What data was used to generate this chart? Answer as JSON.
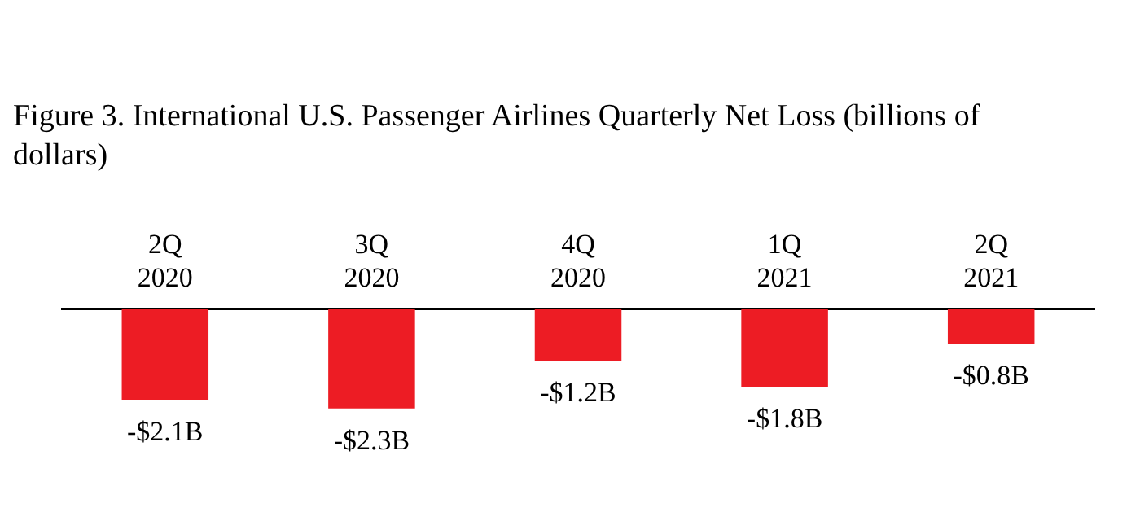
{
  "chart_data": {
    "type": "bar",
    "title": "Figure 3. International U.S. Passenger Airlines Quarterly Net Loss (billions of dollars)",
    "categories": [
      "2Q 2020",
      "3Q 2020",
      "4Q 2020",
      "1Q 2021",
      "2Q 2021"
    ],
    "values": [
      -2.1,
      -2.3,
      -1.2,
      -1.8,
      -0.8
    ],
    "value_labels": [
      "-$2.1B",
      "-$2.3B",
      "-$1.2B",
      "-$1.8B",
      "-$0.8B"
    ],
    "color": "#ed1c24",
    "relative": false,
    "grid": false,
    "legend": false
  }
}
